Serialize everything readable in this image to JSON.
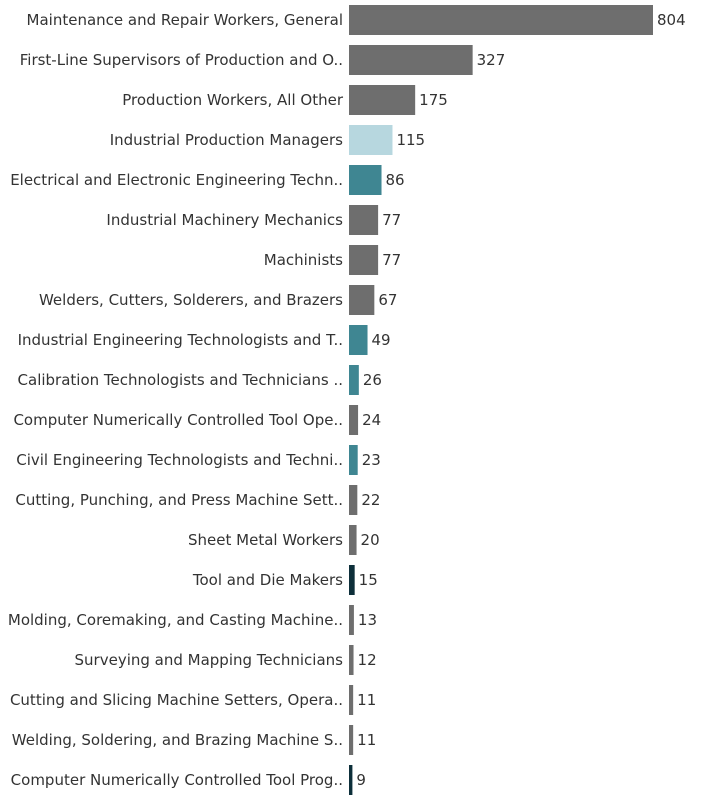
{
  "chart_data": {
    "type": "bar",
    "orientation": "horizontal",
    "title": "",
    "xlabel": "",
    "ylabel": "",
    "xlim": [
      0,
      804
    ],
    "grid": false,
    "categories": [
      "Maintenance and Repair Workers, General",
      "First-Line Supervisors of Production and O..",
      "Production Workers, All Other",
      "Industrial Production Managers",
      "Electrical and Electronic Engineering Techn..",
      "Industrial Machinery Mechanics",
      "Machinists",
      "Welders, Cutters, Solderers, and Brazers",
      "Industrial Engineering Technologists and T..",
      "Calibration Technologists and Technicians ..",
      "Computer Numerically Controlled Tool Ope..",
      "Civil Engineering Technologists and Techni..",
      "Cutting, Punching, and Press Machine Sett..",
      "Sheet Metal Workers",
      "Tool and Die Makers",
      "Molding, Coremaking, and Casting Machine..",
      "Surveying and Mapping Technicians",
      "Cutting and Slicing Machine Setters, Opera..",
      "Welding, Soldering, and Brazing Machine S..",
      "Computer Numerically Controlled Tool Prog.."
    ],
    "values": [
      804,
      327,
      175,
      115,
      86,
      77,
      77,
      67,
      49,
      26,
      24,
      23,
      22,
      20,
      15,
      13,
      12,
      11,
      11,
      9
    ],
    "colors": [
      "#6e6e6e",
      "#6e6e6e",
      "#6e6e6e",
      "#b7d7df",
      "#3f8692",
      "#6e6e6e",
      "#6e6e6e",
      "#6e6e6e",
      "#3f8692",
      "#3f8692",
      "#6e6e6e",
      "#3f8692",
      "#6e6e6e",
      "#6e6e6e",
      "#0d2f3a",
      "#6e6e6e",
      "#6e6e6e",
      "#6e6e6e",
      "#6e6e6e",
      "#0d2f3a"
    ]
  }
}
